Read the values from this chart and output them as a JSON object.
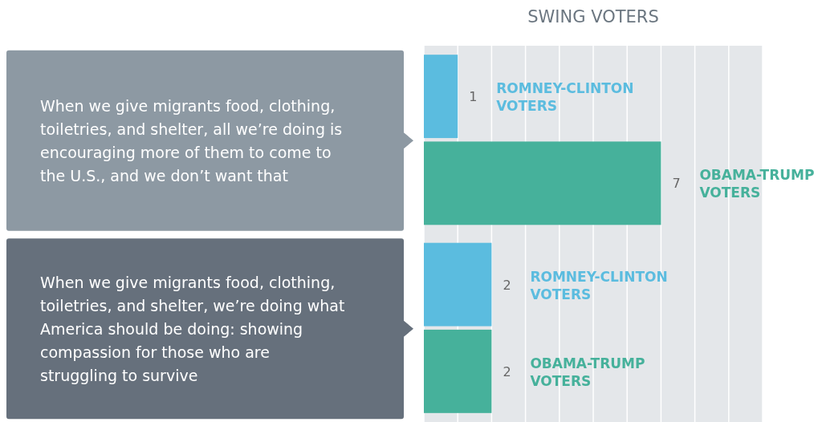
{
  "chart_data": {
    "type": "bar",
    "orientation": "horizontal",
    "title": "SWING VOTERS",
    "categories": [
      "When we give migrants food, clothing, toiletries, and shelter, all we’re doing is encouraging more of them to come to the U.S., and we don’t want that",
      "When we give migrants food, clothing, toiletries, and shelter, we’re doing what America should be doing: showing compassion for those who are struggling to survive"
    ],
    "series": [
      {
        "name": "ROMNEY-CLINTON VOTERS",
        "color": "#5bbcdf",
        "values": [
          1,
          2
        ]
      },
      {
        "name": "OBAMA-TRUMP VOTERS",
        "color": "#46b19b",
        "values": [
          7,
          2
        ]
      }
    ],
    "xlim": [
      0,
      10
    ],
    "xticks": [
      {
        "value": 0,
        "label": null
      },
      {
        "value": 1,
        "label": null
      },
      {
        "value": 2,
        "label": null
      },
      {
        "value": 3,
        "label": null
      },
      {
        "value": 4,
        "label": null
      },
      {
        "value": 5,
        "label": null
      },
      {
        "value": 6,
        "label": null
      },
      {
        "value": 7,
        "label": null
      },
      {
        "value": 8,
        "label": null
      },
      {
        "value": 9,
        "label": null
      },
      {
        "value": 10,
        "label": null
      }
    ],
    "grid": "x",
    "tick_labels": "y",
    "data_labels": true
  }
}
